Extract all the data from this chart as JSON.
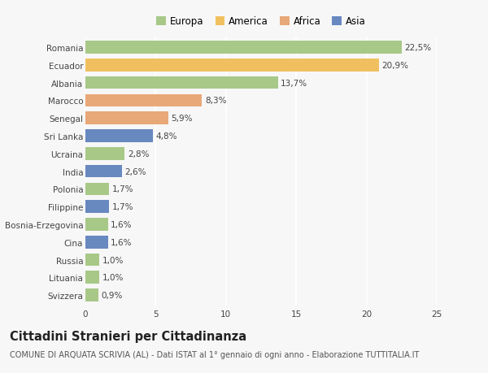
{
  "countries": [
    "Romania",
    "Ecuador",
    "Albania",
    "Marocco",
    "Senegal",
    "Sri Lanka",
    "Ucraina",
    "India",
    "Polonia",
    "Filippine",
    "Bosnia-Erzegovina",
    "Cina",
    "Russia",
    "Lituania",
    "Svizzera"
  ],
  "values": [
    22.5,
    20.9,
    13.7,
    8.3,
    5.9,
    4.8,
    2.8,
    2.6,
    1.7,
    1.7,
    1.6,
    1.6,
    1.0,
    1.0,
    0.9
  ],
  "labels": [
    "22,5%",
    "20,9%",
    "13,7%",
    "8,3%",
    "5,9%",
    "4,8%",
    "2,8%",
    "2,6%",
    "1,7%",
    "1,7%",
    "1,6%",
    "1,6%",
    "1,0%",
    "1,0%",
    "0,9%"
  ],
  "categories": [
    "Europa",
    "America",
    "Africa",
    "Asia"
  ],
  "region": [
    "Europa",
    "America",
    "Europa",
    "Africa",
    "Africa",
    "Asia",
    "Europa",
    "Asia",
    "Europa",
    "Asia",
    "Europa",
    "Asia",
    "Europa",
    "Europa",
    "Europa"
  ],
  "colors": {
    "Europa": "#a8c888",
    "America": "#f0c060",
    "Africa": "#e8a878",
    "Asia": "#6888c0"
  },
  "bg_color": "#f7f7f7",
  "title": "Cittadini Stranieri per Cittadinanza",
  "subtitle": "COMUNE DI ARQUATA SCRIVIA (AL) - Dati ISTAT al 1° gennaio di ogni anno - Elaborazione TUTTITALIA.IT",
  "xlim": [
    0,
    25
  ],
  "xticks": [
    0,
    5,
    10,
    15,
    20,
    25
  ],
  "grid_color": "#ffffff",
  "bar_height": 0.72,
  "label_fontsize": 7.5,
  "tick_fontsize": 7.5,
  "title_fontsize": 10.5,
  "subtitle_fontsize": 7.0,
  "legend_fontsize": 8.5
}
